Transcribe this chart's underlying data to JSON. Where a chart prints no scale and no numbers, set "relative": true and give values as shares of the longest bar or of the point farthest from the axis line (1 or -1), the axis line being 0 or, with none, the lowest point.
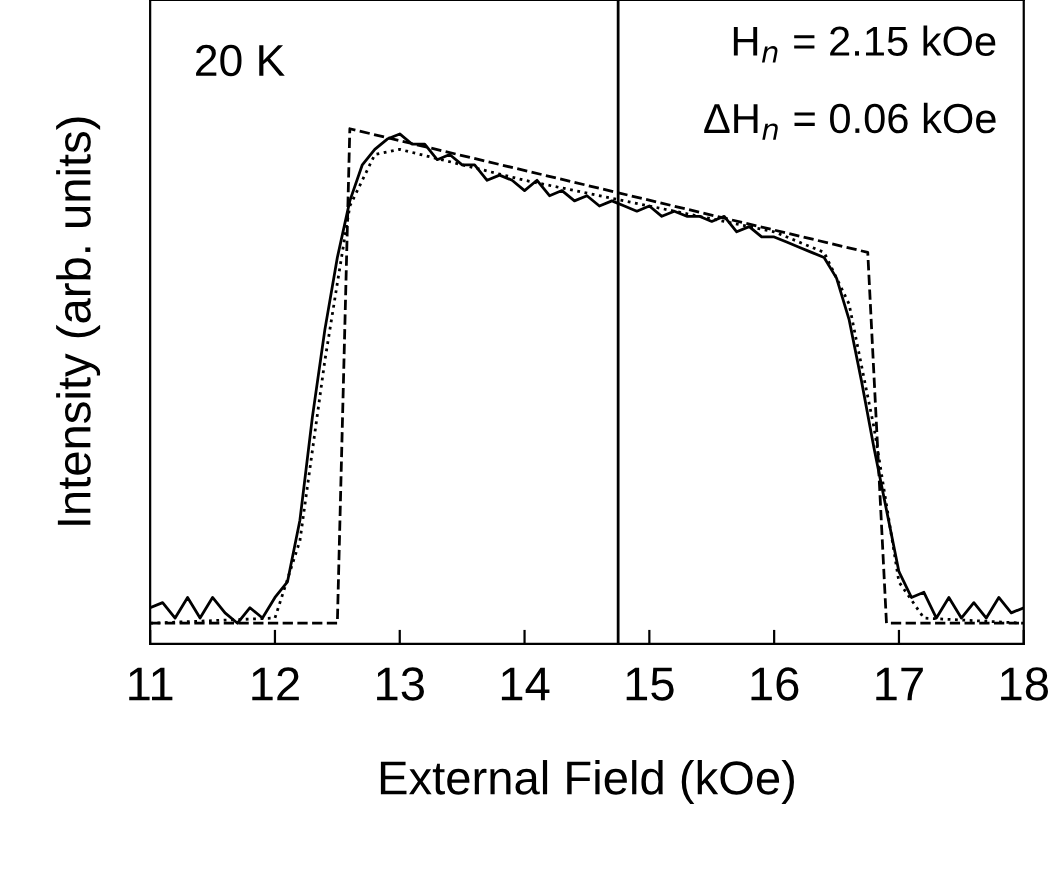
{
  "chart_data": {
    "type": "line",
    "relative": true,
    "xlabel": "External Field (kOe)",
    "ylabel": "Intensity (arb. units)",
    "xlim": [
      11,
      18
    ],
    "xticks": [
      11,
      12,
      13,
      14,
      15,
      16,
      17,
      18
    ],
    "grid": false,
    "legend": false,
    "tick_labels": "x",
    "annotations": [
      "20 K",
      "H$_{n}$ = 2.15 kOe",
      "ΔH$_{n}$ = 0.06 kOe"
    ],
    "ref_lines": [
      {
        "axis": "x",
        "value": 14.75,
        "color": "#000000",
        "line_style": "solid"
      }
    ],
    "series": [
      {
        "color": "#000000",
        "line_style": "solid",
        "x": [
          11.0,
          11.1,
          11.2,
          11.3,
          11.4,
          11.5,
          11.6,
          11.7,
          11.8,
          11.9,
          12.0,
          12.1,
          12.2,
          12.3,
          12.4,
          12.5,
          12.6,
          12.7,
          12.8,
          12.9,
          13.0,
          13.1,
          13.2,
          13.3,
          13.4,
          13.5,
          13.6,
          13.7,
          13.8,
          13.9,
          14.0,
          14.1,
          14.2,
          14.3,
          14.4,
          14.5,
          14.6,
          14.7,
          14.8,
          14.9,
          15.0,
          15.1,
          15.2,
          15.3,
          15.4,
          15.5,
          15.6,
          15.7,
          15.8,
          15.9,
          16.0,
          16.1,
          16.2,
          16.3,
          16.4,
          16.5,
          16.6,
          16.7,
          16.8,
          16.9,
          17.0,
          17.1,
          17.2,
          17.3,
          17.4,
          17.5,
          17.6,
          17.7,
          17.8,
          17.9,
          18.0
        ],
        "values": [
          0.07,
          0.08,
          0.05,
          0.09,
          0.05,
          0.09,
          0.06,
          0.04,
          0.07,
          0.05,
          0.09,
          0.12,
          0.24,
          0.44,
          0.61,
          0.75,
          0.86,
          0.93,
          0.96,
          0.98,
          0.99,
          0.97,
          0.97,
          0.94,
          0.95,
          0.93,
          0.93,
          0.9,
          0.91,
          0.9,
          0.88,
          0.9,
          0.87,
          0.88,
          0.86,
          0.87,
          0.85,
          0.86,
          0.85,
          0.84,
          0.85,
          0.83,
          0.84,
          0.83,
          0.83,
          0.82,
          0.83,
          0.8,
          0.81,
          0.79,
          0.79,
          0.78,
          0.77,
          0.76,
          0.75,
          0.71,
          0.63,
          0.51,
          0.38,
          0.26,
          0.14,
          0.09,
          0.1,
          0.05,
          0.09,
          0.05,
          0.08,
          0.05,
          0.09,
          0.06,
          0.07
        ]
      },
      {
        "color": "#000000",
        "line_style": "dashed",
        "x": [
          11,
          12.5,
          12.6,
          16.75,
          16.9,
          18
        ],
        "values": [
          0.04,
          0.04,
          1.0,
          0.76,
          0.04,
          0.04
        ]
      },
      {
        "color": "#000000",
        "line_style": "dotted",
        "x": [
          11,
          12.0,
          12.2,
          12.4,
          12.6,
          12.8,
          13.0,
          14.0,
          15.0,
          16.0,
          16.4,
          16.6,
          16.8,
          17.0,
          17.2,
          18
        ],
        "values": [
          0.04,
          0.05,
          0.2,
          0.55,
          0.85,
          0.95,
          0.96,
          0.9,
          0.85,
          0.8,
          0.76,
          0.66,
          0.42,
          0.12,
          0.05,
          0.04
        ]
      }
    ]
  }
}
